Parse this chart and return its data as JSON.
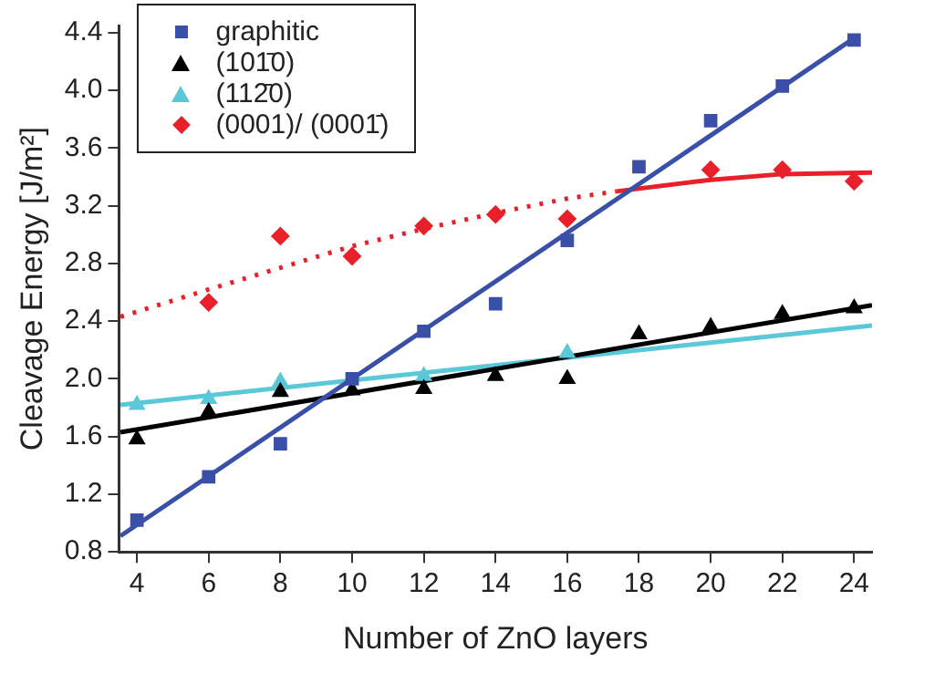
{
  "chart_data": {
    "type": "scatter",
    "xlabel": "Number of ZnO layers",
    "ylabel": "Cleavage Energy [J/m²]",
    "xlim": [
      3.5,
      24.5
    ],
    "ylim": [
      0.8,
      4.45
    ],
    "xticks": [
      4,
      6,
      8,
      10,
      12,
      14,
      16,
      18,
      20,
      22,
      24
    ],
    "yticks": [
      {
        "value": 0.8,
        "label": "0.8"
      },
      {
        "value": 1.2,
        "label": "1.2"
      },
      {
        "value": 1.6,
        "label": "1.6"
      },
      {
        "value": 2.0,
        "label": "2.0"
      },
      {
        "value": 2.4,
        "label": "2.4"
      },
      {
        "value": 2.8,
        "label": "2.8"
      },
      {
        "value": 3.2,
        "label": "3.2"
      },
      {
        "value": 3.6,
        "label": "3.6"
      },
      {
        "value": 4.0,
        "label": "4.0"
      },
      {
        "value": 4.4,
        "label": "4.4"
      }
    ],
    "grid": false,
    "legend": "top left",
    "series": [
      {
        "name": "graphitic",
        "color": "#3a4fa8",
        "marker": "square",
        "x": [
          4,
          6,
          8,
          10,
          12,
          14,
          16,
          18,
          20,
          22,
          24
        ],
        "values": [
          1.02,
          1.32,
          1.55,
          2.0,
          2.33,
          2.52,
          2.96,
          3.47,
          3.79,
          4.03,
          4.35
        ]
      },
      {
        "name": "(101̄0)",
        "color": "#000000",
        "marker": "triangle",
        "x": [
          4,
          6,
          8,
          10,
          12,
          14,
          16,
          18,
          20,
          22,
          24
        ],
        "values": [
          1.58,
          1.77,
          1.91,
          1.92,
          1.93,
          2.02,
          2.0,
          2.31,
          2.36,
          2.45,
          2.49
        ]
      },
      {
        "name": "(112̄0)",
        "color": "#5bc8d8",
        "marker": "triangle",
        "x": [
          4,
          6,
          8,
          10,
          12,
          14,
          16
        ],
        "values": [
          1.82,
          1.86,
          1.98,
          null,
          2.02,
          null,
          2.18
        ]
      },
      {
        "name": "(0001)/ (0001̄)",
        "color": "#e8202a",
        "marker": "diamond",
        "x": [
          6,
          8,
          10,
          12,
          14,
          16,
          20,
          22,
          24
        ],
        "values": [
          2.53,
          2.99,
          2.85,
          3.06,
          3.14,
          3.11,
          3.45,
          3.45,
          3.37
        ]
      },
      {
        "type": "line",
        "color": "#3a4fa8",
        "marker": "none",
        "line_style": "solid",
        "x": [
          3.54,
          24.1
        ],
        "values": [
          0.91,
          4.38
        ]
      },
      {
        "type": "line",
        "color": "#000000",
        "marker": "none",
        "line_style": "solid",
        "x": [
          3.54,
          24.5
        ],
        "values": [
          1.63,
          2.51
        ]
      },
      {
        "type": "line",
        "color": "#5bc8d8",
        "marker": "none",
        "line_style": "solid",
        "x": [
          3.54,
          24.5
        ],
        "values": [
          1.82,
          2.37
        ]
      },
      {
        "type": "line",
        "color": "#e8202a",
        "marker": "none",
        "line_style": "dotted",
        "x": [
          3.54,
          6,
          8,
          10,
          12,
          14,
          16,
          17.37
        ],
        "values": [
          2.43,
          2.62,
          2.77,
          2.92,
          3.04,
          3.15,
          3.25,
          3.3
        ]
      },
      {
        "type": "line",
        "color": "#e8202a",
        "marker": "none",
        "line_style": "solid",
        "x": [
          17.37,
          20,
          22,
          24.5
        ],
        "values": [
          3.3,
          3.38,
          3.42,
          3.43
        ]
      }
    ]
  }
}
